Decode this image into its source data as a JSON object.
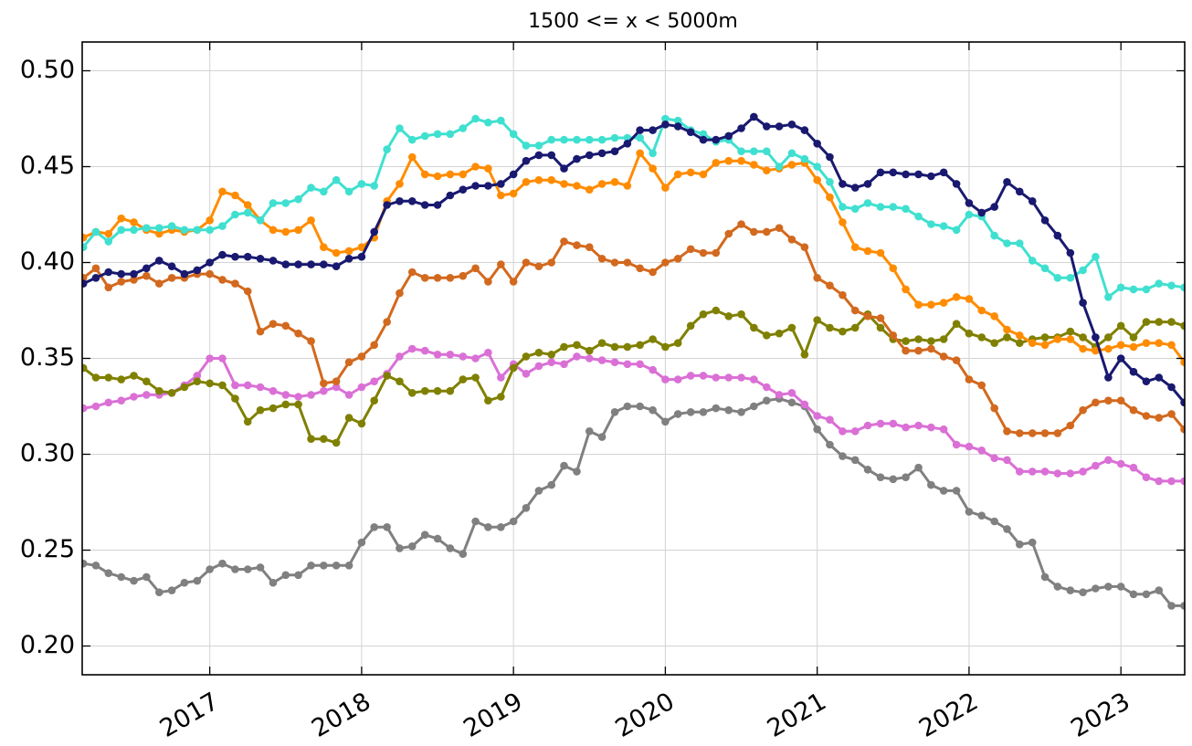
{
  "chart_data": {
    "type": "line",
    "title": "1500 <= x < 5000m",
    "x": [
      2016.167,
      2016.25,
      2016.333,
      2016.417,
      2016.5,
      2016.583,
      2016.667,
      2016.75,
      2016.833,
      2016.917,
      2017,
      2017.083,
      2017.167,
      2017.25,
      2017.333,
      2017.417,
      2017.5,
      2017.583,
      2017.667,
      2017.75,
      2017.833,
      2017.917,
      2018,
      2018.083,
      2018.167,
      2018.25,
      2018.333,
      2018.417,
      2018.5,
      2018.583,
      2018.667,
      2018.75,
      2018.833,
      2018.917,
      2019,
      2019.083,
      2019.167,
      2019.25,
      2019.333,
      2019.417,
      2019.5,
      2019.583,
      2019.667,
      2019.75,
      2019.833,
      2019.917,
      2020,
      2020.083,
      2020.167,
      2020.25,
      2020.333,
      2020.417,
      2020.5,
      2020.583,
      2020.667,
      2020.75,
      2020.833,
      2020.917,
      2021,
      2021.083,
      2021.167,
      2021.25,
      2021.333,
      2021.417,
      2021.5,
      2021.583,
      2021.667,
      2021.75,
      2021.833,
      2021.917,
      2022,
      2022.083,
      2022.167,
      2022.25,
      2022.333,
      2022.417,
      2022.5,
      2022.583,
      2022.667,
      2022.75,
      2022.833,
      2022.917,
      2023,
      2023.083,
      2023.167,
      2023.25,
      2023.333,
      2023.417
    ],
    "series": [
      {
        "color": "#808080",
        "values": [
          0.243,
          0.242,
          0.238,
          0.236,
          0.234,
          0.236,
          0.228,
          0.229,
          0.233,
          0.234,
          0.24,
          0.243,
          0.24,
          0.24,
          0.241,
          0.233,
          0.237,
          0.237,
          0.242,
          0.242,
          0.242,
          0.242,
          0.254,
          0.262,
          0.262,
          0.251,
          0.252,
          0.258,
          0.256,
          0.251,
          0.248,
          0.265,
          0.262,
          0.262,
          0.265,
          0.272,
          0.281,
          0.284,
          0.294,
          0.291,
          0.312,
          0.309,
          0.322,
          0.325,
          0.325,
          0.323,
          0.317,
          0.321,
          0.322,
          0.322,
          0.324,
          0.323,
          0.322,
          0.325,
          0.328,
          0.329,
          0.327,
          0.325,
          0.313,
          0.305,
          0.299,
          0.297,
          0.292,
          0.288,
          0.287,
          0.288,
          0.293,
          0.284,
          0.281,
          0.281,
          0.27,
          0.268,
          0.265,
          0.261,
          0.253,
          0.254,
          0.236,
          0.231,
          0.229,
          0.228,
          0.23,
          0.231,
          0.231,
          0.227,
          0.227,
          0.229,
          0.221,
          0.221
        ]
      },
      {
        "color": "#da70d6",
        "values": [
          0.324,
          0.325,
          0.327,
          0.328,
          0.33,
          0.331,
          0.331,
          0.332,
          0.336,
          0.341,
          0.35,
          0.35,
          0.336,
          0.336,
          0.335,
          0.333,
          0.331,
          0.33,
          0.331,
          0.333,
          0.335,
          0.331,
          0.335,
          0.338,
          0.342,
          0.351,
          0.355,
          0.354,
          0.352,
          0.352,
          0.351,
          0.35,
          0.353,
          0.34,
          0.347,
          0.342,
          0.346,
          0.348,
          0.347,
          0.351,
          0.35,
          0.349,
          0.348,
          0.347,
          0.347,
          0.344,
          0.339,
          0.339,
          0.341,
          0.341,
          0.34,
          0.34,
          0.34,
          0.339,
          0.335,
          0.331,
          0.332,
          0.326,
          0.32,
          0.318,
          0.312,
          0.312,
          0.315,
          0.316,
          0.316,
          0.314,
          0.315,
          0.314,
          0.313,
          0.305,
          0.304,
          0.302,
          0.298,
          0.297,
          0.291,
          0.291,
          0.291,
          0.29,
          0.29,
          0.291,
          0.294,
          0.297,
          0.295,
          0.293,
          0.288,
          0.286,
          0.286,
          0.286
        ]
      },
      {
        "color": "#808000",
        "values": [
          0.345,
          0.34,
          0.34,
          0.339,
          0.341,
          0.338,
          0.333,
          0.332,
          0.335,
          0.338,
          0.337,
          0.336,
          0.329,
          0.317,
          0.323,
          0.324,
          0.326,
          0.326,
          0.308,
          0.308,
          0.306,
          0.319,
          0.316,
          0.328,
          0.341,
          0.338,
          0.332,
          0.333,
          0.333,
          0.333,
          0.339,
          0.34,
          0.328,
          0.33,
          0.345,
          0.351,
          0.353,
          0.352,
          0.356,
          0.357,
          0.354,
          0.358,
          0.356,
          0.356,
          0.357,
          0.36,
          0.356,
          0.358,
          0.367,
          0.373,
          0.375,
          0.372,
          0.373,
          0.366,
          0.362,
          0.363,
          0.366,
          0.352,
          0.37,
          0.366,
          0.364,
          0.366,
          0.373,
          0.366,
          0.36,
          0.359,
          0.36,
          0.359,
          0.36,
          0.368,
          0.363,
          0.361,
          0.358,
          0.361,
          0.358,
          0.36,
          0.361,
          0.361,
          0.364,
          0.361,
          0.356,
          0.361,
          0.367,
          0.361,
          0.369,
          0.369,
          0.369,
          0.367
        ]
      },
      {
        "color": "#d2691e",
        "values": [
          0.392,
          0.397,
          0.387,
          0.39,
          0.391,
          0.393,
          0.389,
          0.392,
          0.392,
          0.394,
          0.394,
          0.391,
          0.389,
          0.385,
          0.364,
          0.368,
          0.367,
          0.363,
          0.359,
          0.337,
          0.338,
          0.348,
          0.351,
          0.357,
          0.369,
          0.384,
          0.395,
          0.392,
          0.392,
          0.392,
          0.393,
          0.397,
          0.39,
          0.399,
          0.39,
          0.4,
          0.398,
          0.4,
          0.411,
          0.409,
          0.408,
          0.402,
          0.4,
          0.4,
          0.397,
          0.395,
          0.4,
          0.402,
          0.407,
          0.405,
          0.405,
          0.415,
          0.42,
          0.416,
          0.416,
          0.418,
          0.412,
          0.408,
          0.392,
          0.388,
          0.383,
          0.375,
          0.372,
          0.371,
          0.362,
          0.354,
          0.354,
          0.355,
          0.351,
          0.349,
          0.339,
          0.336,
          0.324,
          0.312,
          0.311,
          0.311,
          0.311,
          0.311,
          0.315,
          0.323,
          0.327,
          0.328,
          0.328,
          0.323,
          0.32,
          0.319,
          0.321,
          0.313
        ]
      },
      {
        "color": "#ff8c00",
        "values": [
          0.413,
          0.416,
          0.415,
          0.423,
          0.421,
          0.417,
          0.415,
          0.417,
          0.416,
          0.417,
          0.422,
          0.437,
          0.435,
          0.43,
          0.422,
          0.417,
          0.416,
          0.417,
          0.422,
          0.408,
          0.405,
          0.406,
          0.408,
          0.413,
          0.432,
          0.441,
          0.455,
          0.446,
          0.445,
          0.446,
          0.446,
          0.45,
          0.449,
          0.435,
          0.436,
          0.442,
          0.443,
          0.443,
          0.441,
          0.44,
          0.438,
          0.441,
          0.442,
          0.44,
          0.457,
          0.449,
          0.439,
          0.446,
          0.447,
          0.446,
          0.452,
          0.453,
          0.453,
          0.451,
          0.448,
          0.449,
          0.451,
          0.452,
          0.443,
          0.434,
          0.421,
          0.408,
          0.406,
          0.405,
          0.397,
          0.386,
          0.378,
          0.378,
          0.379,
          0.382,
          0.381,
          0.375,
          0.372,
          0.365,
          0.362,
          0.358,
          0.357,
          0.36,
          0.36,
          0.355,
          0.354,
          0.355,
          0.357,
          0.356,
          0.358,
          0.358,
          0.357,
          0.348
        ]
      },
      {
        "color": "#40e0d0",
        "values": [
          0.408,
          0.416,
          0.411,
          0.417,
          0.417,
          0.418,
          0.418,
          0.419,
          0.417,
          0.417,
          0.417,
          0.419,
          0.425,
          0.426,
          0.422,
          0.431,
          0.431,
          0.433,
          0.439,
          0.437,
          0.443,
          0.437,
          0.441,
          0.44,
          0.459,
          0.47,
          0.464,
          0.466,
          0.467,
          0.467,
          0.47,
          0.475,
          0.473,
          0.474,
          0.467,
          0.461,
          0.461,
          0.464,
          0.464,
          0.464,
          0.464,
          0.464,
          0.465,
          0.465,
          0.465,
          0.457,
          0.475,
          0.474,
          0.469,
          0.467,
          0.463,
          0.464,
          0.458,
          0.458,
          0.458,
          0.45,
          0.457,
          0.454,
          0.45,
          0.442,
          0.429,
          0.428,
          0.431,
          0.429,
          0.429,
          0.428,
          0.424,
          0.42,
          0.419,
          0.417,
          0.425,
          0.424,
          0.414,
          0.41,
          0.41,
          0.401,
          0.397,
          0.392,
          0.392,
          0.396,
          0.403,
          0.382,
          0.387,
          0.386,
          0.386,
          0.389,
          0.388,
          0.387
        ]
      },
      {
        "color": "#191970",
        "values": [
          0.389,
          0.392,
          0.395,
          0.394,
          0.394,
          0.397,
          0.401,
          0.398,
          0.394,
          0.396,
          0.4,
          0.404,
          0.403,
          0.403,
          0.402,
          0.401,
          0.399,
          0.399,
          0.399,
          0.399,
          0.398,
          0.402,
          0.403,
          0.416,
          0.43,
          0.432,
          0.432,
          0.43,
          0.43,
          0.435,
          0.438,
          0.44,
          0.44,
          0.441,
          0.446,
          0.453,
          0.456,
          0.456,
          0.449,
          0.454,
          0.456,
          0.457,
          0.458,
          0.462,
          0.469,
          0.469,
          0.472,
          0.471,
          0.468,
          0.464,
          0.464,
          0.466,
          0.47,
          0.476,
          0.471,
          0.471,
          0.472,
          0.469,
          0.462,
          0.455,
          0.441,
          0.439,
          0.441,
          0.447,
          0.447,
          0.446,
          0.446,
          0.445,
          0.447,
          0.441,
          0.431,
          0.426,
          0.429,
          0.442,
          0.437,
          0.432,
          0.422,
          0.414,
          0.405,
          0.379,
          0.361,
          0.34,
          0.35,
          0.343,
          0.338,
          0.34,
          0.335,
          0.327
        ]
      }
    ],
    "xlim": [
      2016.16,
      2023.42
    ],
    "xticks": [
      2017,
      2018,
      2019,
      2020,
      2021,
      2022,
      2023
    ],
    "ylim": [
      0.185,
      0.515
    ],
    "yticks": [
      {
        "value": 0.2,
        "label": "0.20"
      },
      0.25,
      {
        "value": 0.3,
        "label": "0.30"
      },
      0.35,
      {
        "value": 0.4,
        "label": "0.40"
      },
      0.45,
      {
        "value": 0.5,
        "label": "0.50"
      }
    ],
    "grid": true
  }
}
